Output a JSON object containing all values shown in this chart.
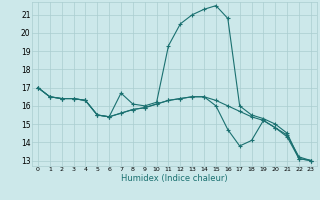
{
  "background_color": "#cce8ea",
  "grid_color": "#aacdd0",
  "line_color": "#1a7070",
  "xlabel": "Humidex (Indice chaleur)",
  "xlim": [
    -0.5,
    23.5
  ],
  "ylim": [
    12.7,
    21.7
  ],
  "yticks": [
    13,
    14,
    15,
    16,
    17,
    18,
    19,
    20,
    21
  ],
  "xticks": [
    0,
    1,
    2,
    3,
    4,
    5,
    6,
    7,
    8,
    9,
    10,
    11,
    12,
    13,
    14,
    15,
    16,
    17,
    18,
    19,
    20,
    21,
    22,
    23
  ],
  "line1_x": [
    0,
    1,
    2,
    3,
    4,
    5,
    6,
    7,
    8,
    9,
    10,
    11,
    12,
    13,
    14,
    15,
    16,
    17,
    18,
    19,
    20,
    21,
    22,
    23
  ],
  "line1_y": [
    17.0,
    16.5,
    16.4,
    16.4,
    16.3,
    15.5,
    15.4,
    16.7,
    16.1,
    16.0,
    16.2,
    19.3,
    20.5,
    21.0,
    21.3,
    21.5,
    20.8,
    16.0,
    15.5,
    15.3,
    15.0,
    14.5,
    13.1,
    13.0
  ],
  "line2_x": [
    0,
    1,
    2,
    3,
    4,
    5,
    6,
    7,
    8,
    9,
    10,
    11,
    12,
    13,
    14,
    15,
    16,
    17,
    18,
    19,
    20,
    21,
    22,
    23
  ],
  "line2_y": [
    17.0,
    16.5,
    16.4,
    16.4,
    16.3,
    15.5,
    15.4,
    15.6,
    15.8,
    15.9,
    16.1,
    16.3,
    16.4,
    16.5,
    16.5,
    16.0,
    14.7,
    13.8,
    14.1,
    15.2,
    14.8,
    14.3,
    13.1,
    13.0
  ],
  "line3_x": [
    0,
    1,
    2,
    3,
    4,
    5,
    6,
    7,
    8,
    9,
    10,
    11,
    12,
    13,
    14,
    15,
    16,
    17,
    18,
    19,
    20,
    21,
    22,
    23
  ],
  "line3_y": [
    17.0,
    16.5,
    16.4,
    16.4,
    16.3,
    15.5,
    15.4,
    15.6,
    15.8,
    15.9,
    16.1,
    16.3,
    16.4,
    16.5,
    16.5,
    16.3,
    16.0,
    15.7,
    15.4,
    15.2,
    14.8,
    14.4,
    13.2,
    13.0
  ]
}
